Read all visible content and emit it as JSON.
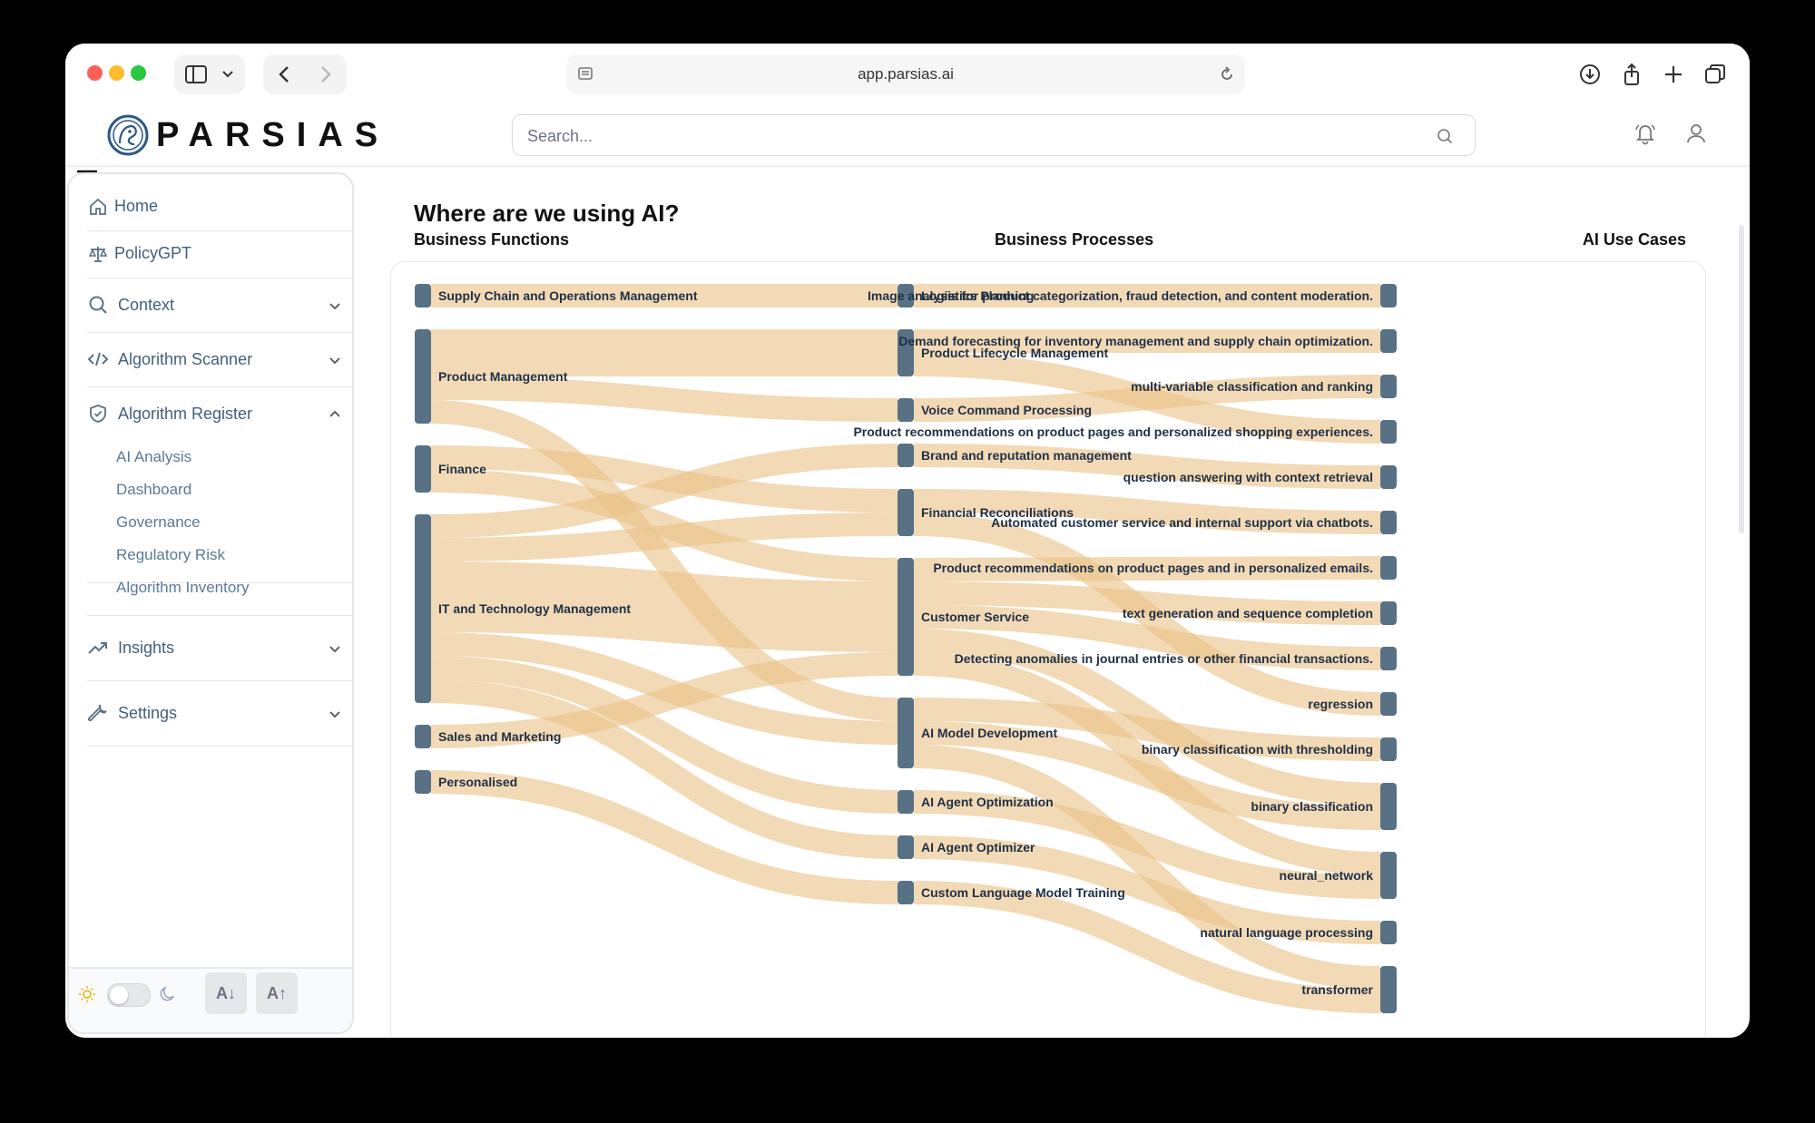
{
  "browser": {
    "url": "app.parsias.ai",
    "icons": [
      "sidebar-toggle-icon",
      "chevron-down-icon",
      "back-icon",
      "forward-icon",
      "reader-icon",
      "reload-icon",
      "download-icon",
      "share-icon",
      "new-tab-icon",
      "tabs-overview-icon"
    ]
  },
  "header": {
    "brand": "PARSIAS",
    "search_placeholder": "Search...",
    "icons": [
      "menu-icon",
      "logo-icon",
      "search-icon",
      "bell-icon",
      "user-icon"
    ]
  },
  "sidebar": {
    "items": [
      {
        "label": "Home",
        "icon": "home-icon"
      },
      {
        "label": "PolicyGPT",
        "icon": "scale-icon"
      },
      {
        "label": "Context",
        "icon": "search-icon",
        "chevron": "down"
      },
      {
        "label": "Algorithm Scanner",
        "icon": "code-icon",
        "chevron": "down"
      },
      {
        "label": "Algorithm Register",
        "icon": "shield-icon",
        "chevron": "up"
      },
      {
        "label": "Insights",
        "icon": "trend-icon",
        "chevron": "down"
      },
      {
        "label": "Settings",
        "icon": "wrench-icon",
        "chevron": "down"
      }
    ],
    "register_subitems": [
      "AI Analysis",
      "Dashboard",
      "Governance",
      "Regulatory Risk",
      "Algorithm Inventory"
    ],
    "footer": {
      "theme": "light",
      "decrease_font_label": "A↓",
      "increase_font_label": "A↑"
    }
  },
  "main": {
    "title": "Where are we using AI?",
    "columns": [
      "Business Functions",
      "Business Processes",
      "AI Use Cases"
    ]
  },
  "chart_data": {
    "type": "sankey",
    "colors": {
      "node": "#587184",
      "link": "#eac489",
      "text": "#1f2f45"
    },
    "nodes": [
      {
        "id": "f_sc",
        "label": "Supply Chain and Operations Management",
        "col": 0
      },
      {
        "id": "f_pm",
        "label": "Product Management",
        "col": 0
      },
      {
        "id": "f_fin",
        "label": "Finance",
        "col": 0
      },
      {
        "id": "f_it",
        "label": "IT and Technology Management",
        "col": 0
      },
      {
        "id": "f_sm",
        "label": "Sales and Marketing",
        "col": 0
      },
      {
        "id": "f_pers",
        "label": "Personalised",
        "col": 0
      },
      {
        "id": "p_log",
        "label": "Logistics Planning",
        "col": 1
      },
      {
        "id": "p_plm",
        "label": "Product Lifecycle Management",
        "col": 1
      },
      {
        "id": "p_vcp",
        "label": "Voice Command Processing",
        "col": 1
      },
      {
        "id": "p_brm",
        "label": "Brand and reputation management",
        "col": 1
      },
      {
        "id": "p_fr",
        "label": "Financial Reconciliations",
        "col": 1
      },
      {
        "id": "p_cs",
        "label": "Customer Service",
        "col": 1
      },
      {
        "id": "p_amd",
        "label": "AI Model Development",
        "col": 1
      },
      {
        "id": "p_aao",
        "label": "AI Agent Optimization",
        "col": 1
      },
      {
        "id": "p_aaor",
        "label": "AI Agent Optimizer",
        "col": 1
      },
      {
        "id": "p_clm",
        "label": "Custom Language Model Training",
        "col": 1
      },
      {
        "id": "u_img",
        "label": "Image analysis for product categorization, fraud detection, and content moderation.",
        "col": 2
      },
      {
        "id": "u_dem",
        "label": "Demand forecasting for inventory management and supply chain optimization.",
        "col": 2
      },
      {
        "id": "u_mvc",
        "label": "multi-variable classification and ranking",
        "col": 2
      },
      {
        "id": "u_prs",
        "label": "Product recommendations on product pages and personalized shopping experiences.",
        "col": 2
      },
      {
        "id": "u_qa",
        "label": "question answering with context retrieval",
        "col": 2
      },
      {
        "id": "u_acs",
        "label": "Automated customer service and internal support via chatbots.",
        "col": 2
      },
      {
        "id": "u_pre",
        "label": "Product recommendations on product pages and in personalized emails.",
        "col": 2
      },
      {
        "id": "u_tg",
        "label": "text generation and sequence completion",
        "col": 2
      },
      {
        "id": "u_ano",
        "label": "Detecting anomalies in journal entries or other financial transactions.",
        "col": 2
      },
      {
        "id": "u_reg",
        "label": "regression",
        "col": 2
      },
      {
        "id": "u_bct",
        "label": "binary classification with thresholding",
        "col": 2
      },
      {
        "id": "u_bc",
        "label": "binary classification",
        "col": 2
      },
      {
        "id": "u_nn",
        "label": "neural_network",
        "col": 2
      },
      {
        "id": "u_nlp",
        "label": "natural language processing",
        "col": 2
      },
      {
        "id": "u_tf",
        "label": "transformer",
        "col": 2
      }
    ],
    "links": [
      {
        "source": "f_sc",
        "target": "p_log",
        "value": 1
      },
      {
        "source": "f_pm",
        "target": "p_plm",
        "value": 2
      },
      {
        "source": "f_pm",
        "target": "p_vcp",
        "value": 1
      },
      {
        "source": "f_pm",
        "target": "p_amd",
        "value": 1
      },
      {
        "source": "f_fin",
        "target": "p_fr",
        "value": 1
      },
      {
        "source": "f_fin",
        "target": "p_cs",
        "value": 1
      },
      {
        "source": "f_it",
        "target": "p_brm",
        "value": 1
      },
      {
        "source": "f_it",
        "target": "p_fr",
        "value": 1
      },
      {
        "source": "f_it",
        "target": "p_cs",
        "value": 3
      },
      {
        "source": "f_it",
        "target": "p_amd",
        "value": 1
      },
      {
        "source": "f_it",
        "target": "p_aao",
        "value": 1
      },
      {
        "source": "f_it",
        "target": "p_aaor",
        "value": 1
      },
      {
        "source": "f_sm",
        "target": "p_cs",
        "value": 1
      },
      {
        "source": "f_pers",
        "target": "p_clm",
        "value": 1
      },
      {
        "source": "p_log",
        "target": "u_img",
        "value": 1
      },
      {
        "source": "p_plm",
        "target": "u_dem",
        "value": 1
      },
      {
        "source": "p_plm",
        "target": "u_prs",
        "value": 1
      },
      {
        "source": "p_vcp",
        "target": "u_mvc",
        "value": 1
      },
      {
        "source": "p_brm",
        "target": "u_qa",
        "value": 1
      },
      {
        "source": "p_fr",
        "target": "u_acs",
        "value": 1
      },
      {
        "source": "p_fr",
        "target": "u_reg",
        "value": 1
      },
      {
        "source": "p_cs",
        "target": "u_pre",
        "value": 1
      },
      {
        "source": "p_cs",
        "target": "u_tg",
        "value": 1
      },
      {
        "source": "p_cs",
        "target": "u_ano",
        "value": 1
      },
      {
        "source": "p_cs",
        "target": "u_bc",
        "value": 1
      },
      {
        "source": "p_cs",
        "target": "u_nn",
        "value": 1
      },
      {
        "source": "p_amd",
        "target": "u_bct",
        "value": 1
      },
      {
        "source": "p_amd",
        "target": "u_bc",
        "value": 1
      },
      {
        "source": "p_amd",
        "target": "u_tf",
        "value": 1
      },
      {
        "source": "p_aao",
        "target": "u_nn",
        "value": 1
      },
      {
        "source": "p_aaor",
        "target": "u_nlp",
        "value": 1
      },
      {
        "source": "p_clm",
        "target": "u_tf",
        "value": 1
      }
    ]
  }
}
